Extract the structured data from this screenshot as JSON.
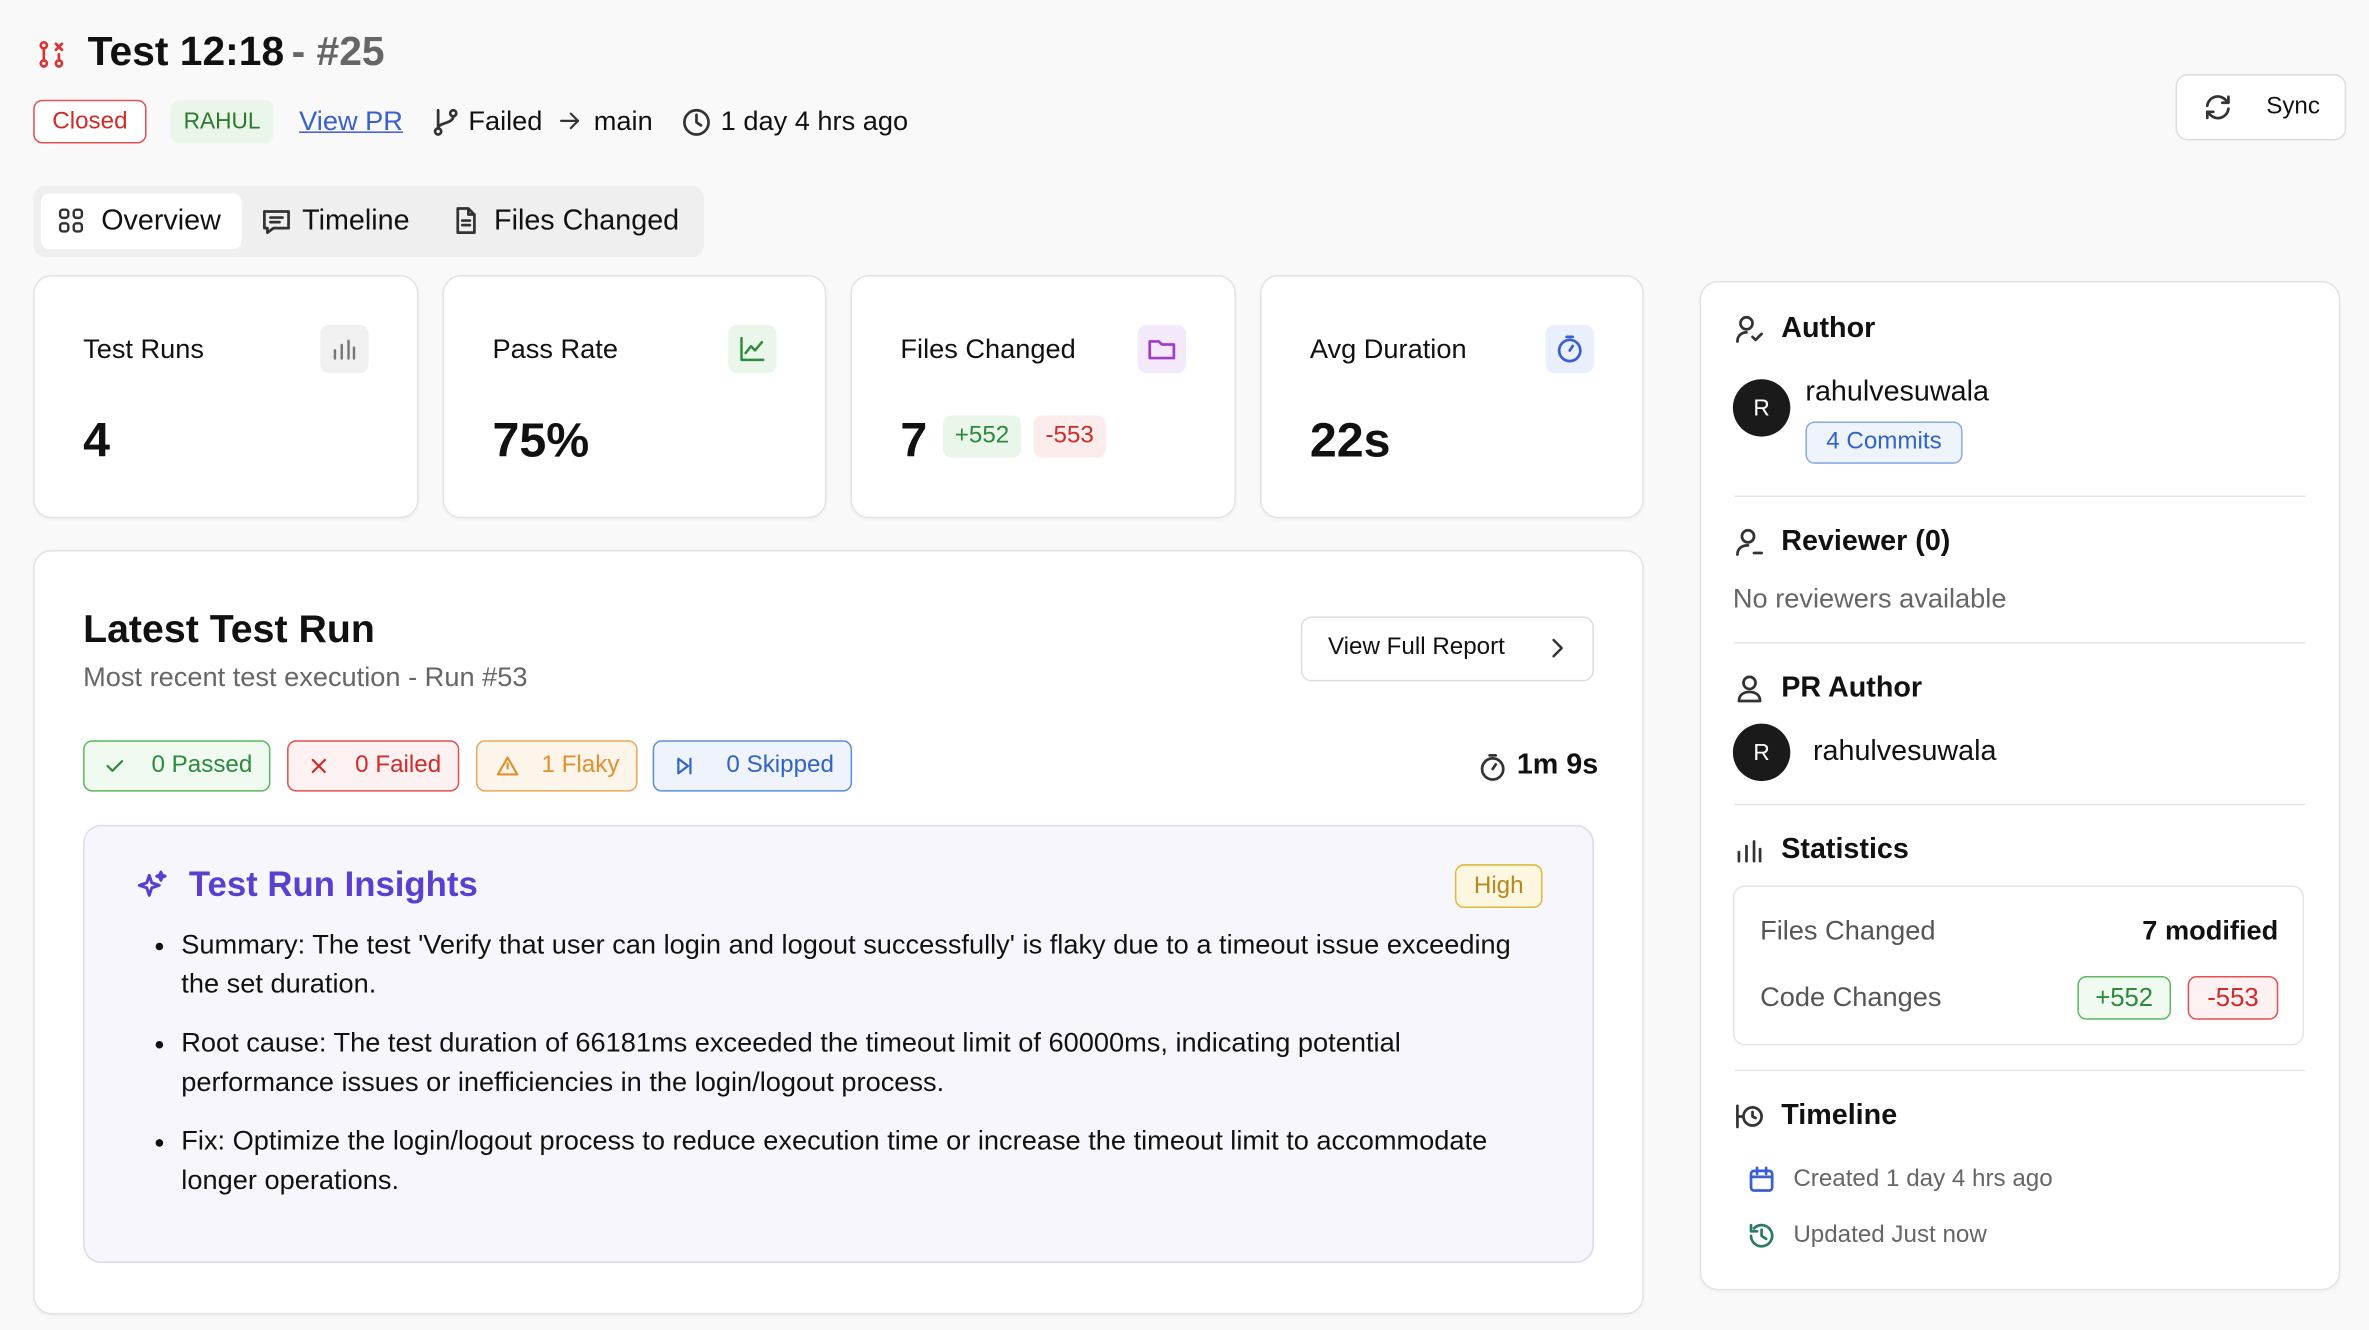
{
  "header": {
    "title": "Test 12:18",
    "number": "- #25",
    "status": "Closed",
    "user": "RAHUL",
    "view_pr": "View PR",
    "branch_from": "Failed",
    "branch_to": "main",
    "time": "1 day 4 hrs ago",
    "sync": "Sync"
  },
  "tabs": [
    "Overview",
    "Timeline",
    "Files Changed"
  ],
  "stats": [
    {
      "label": "Test Runs",
      "value": "4"
    },
    {
      "label": "Pass Rate",
      "value": "75%"
    },
    {
      "label": "Files Changed",
      "value": "7",
      "added": "+552",
      "removed": "-553"
    },
    {
      "label": "Avg Duration",
      "value": "22s"
    }
  ],
  "latest_run": {
    "title": "Latest Test Run",
    "subtitle": "Most recent test execution - Run #53",
    "button": "View Full Report",
    "badges": [
      "0 Passed",
      "0 Failed",
      "1 Flaky",
      "0 Skipped"
    ],
    "duration": "1m 9s",
    "insights": {
      "title": "Test Run Insights",
      "priority": "High",
      "items": [
        "Summary: The test 'Verify that user can login and logout successfully' is flaky due to a timeout issue exceeding the set duration.",
        "Root cause: The test duration of 66181ms exceeded the timeout limit of 60000ms, indicating potential performance issues or inefficiencies in the login/logout process.",
        "Fix: Optimize the login/logout process to reduce execution time or increase the timeout limit to accommodate longer operations."
      ]
    }
  },
  "sidebar": {
    "author": {
      "heading": "Author",
      "avatar": "R",
      "name": "rahulvesuwala",
      "commits": "4 Commits"
    },
    "reviewer": {
      "heading": "Reviewer (0)",
      "empty": "No reviewers available"
    },
    "pr_author": {
      "heading": "PR Author",
      "avatar": "R",
      "name": "rahulvesuwala"
    },
    "statistics": {
      "heading": "Statistics",
      "files_label": "Files Changed",
      "files_value": "7 modified",
      "code_label": "Code Changes",
      "added": "+552",
      "removed": "-553"
    },
    "timeline": {
      "heading": "Timeline",
      "created": "Created 1 day 4 hrs ago",
      "updated": "Updated Just now"
    }
  }
}
